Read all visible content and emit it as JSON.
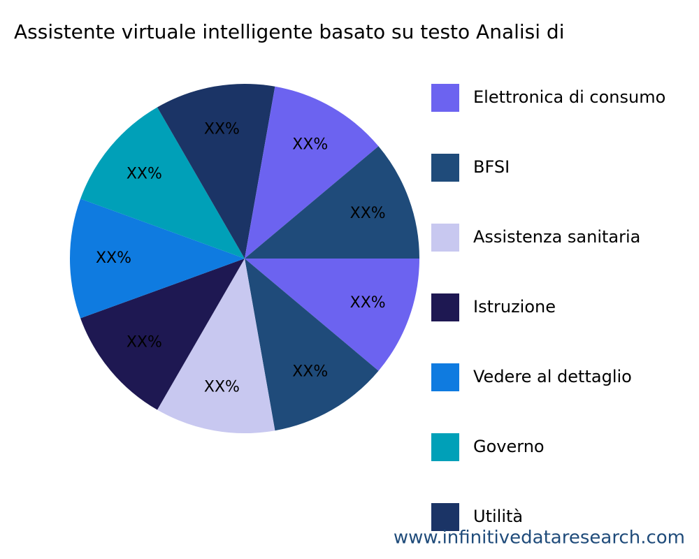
{
  "chart_data": {
    "type": "pie",
    "title": "Assistente virtuale intelligente basato su testo Analisi di",
    "categories": [
      "Elettronica di consumo",
      "BFSI",
      "Assistenza sanitaria",
      "Istruzione",
      "Vedere al dettaglio",
      "Governo",
      "Utilità",
      null,
      null
    ],
    "values": [
      11.1,
      11.1,
      11.1,
      11.1,
      11.1,
      11.1,
      11.1,
      11.1,
      11.1
    ],
    "value_labels": [
      "XX%",
      "XX%",
      "XX%",
      "XX%",
      "XX%",
      "XX%",
      "XX%",
      "XX%",
      "XX%"
    ],
    "colors": [
      "#6c63f0",
      "#1f4b7a",
      "#c8c8f0",
      "#1e1852",
      "#0f7be0",
      "#00a0b8",
      "#1b3466",
      "#6c63f0",
      "#1f4b7a"
    ]
  },
  "watermark": "www.infinitivedataresearch.com"
}
